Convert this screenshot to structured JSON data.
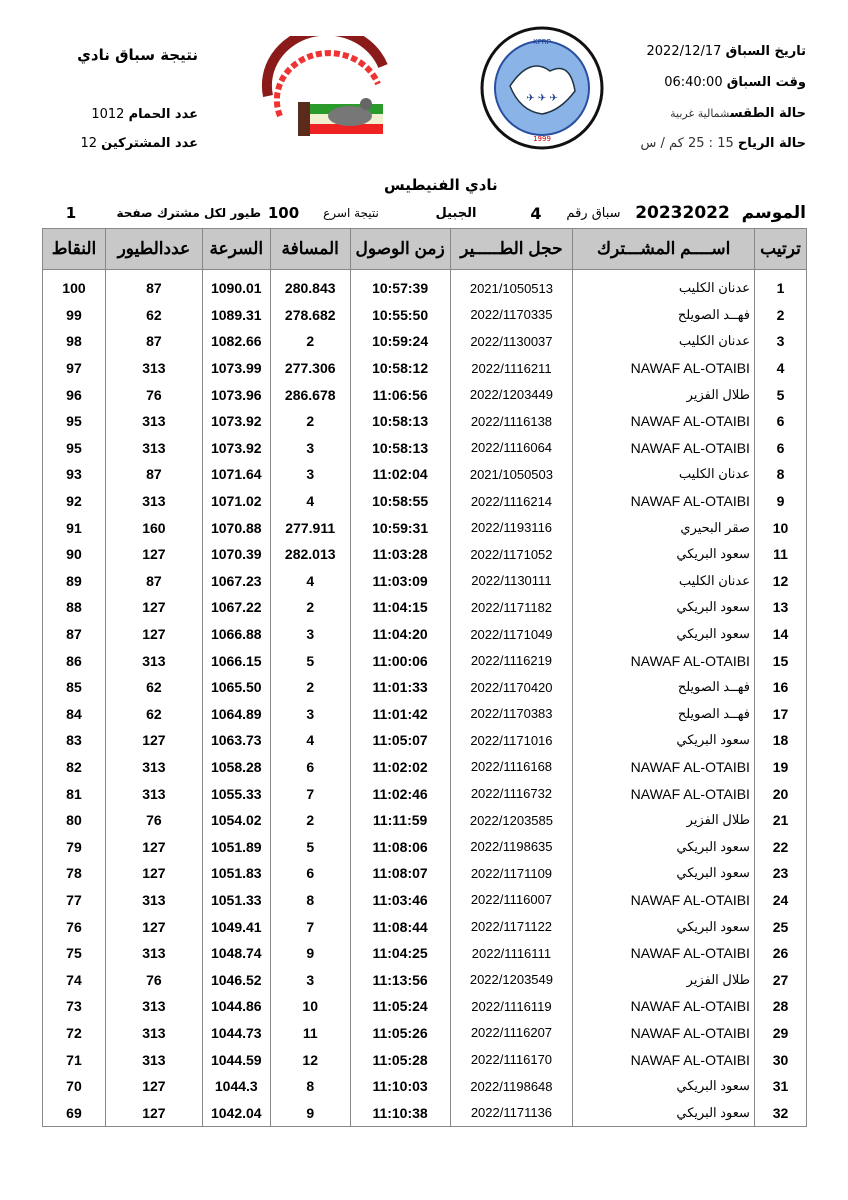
{
  "header": {
    "race_date_label": "تاريخ السباق",
    "race_date": "2022/12/17",
    "race_time_label": "وقت السباق",
    "race_time": "06:40:00",
    "weather_label": "حالة الطقس",
    "weather": "شمالية غربية",
    "wind_label": "حالة الرياح",
    "wind": "15 : 25 كم / س",
    "title": "نتيجة سباق نادي",
    "pigeons_label": "عدد الحمام",
    "pigeons": "1012",
    "participants_label": "عدد المشتركين",
    "participants": "12",
    "logo_left_text": "النادي الكويتي لسباق الحمام الزاجل - Kuwait Racing Pigeon Club",
    "logo_right_text": "الاتحاد الكويتي لسباق الحمام الزاجل - Kuwait Federation For Racing Pigeons"
  },
  "club": "نادي الفنيطيس",
  "info": {
    "season_label": "الموسم",
    "season": "20232022",
    "race_no_label": "سباق رقم",
    "race_no": "4",
    "location": "الجبيل",
    "result_label": "نتيجة اسرع",
    "result_count": "100",
    "per_member_label": "طيور لكل مشترك",
    "page_label": "صفحة",
    "page": "1"
  },
  "columns": {
    "rank": "ترتيب",
    "name": "اســــم المشـــترك",
    "ring": "حجل الطـــــير",
    "time": "زمن الوصول",
    "distance": "المسافة",
    "speed": "السرعة",
    "birds": "عددالطيور",
    "points": "النقاط"
  },
  "rows": [
    [
      "1",
      "عدنان الكليب",
      "2021/1050513",
      "10:57:39",
      "280.843",
      "1090.01",
      "87",
      "100"
    ],
    [
      "2",
      "فهــد الصويلح",
      "2022/1170335",
      "10:55:50",
      "278.682",
      "1089.31",
      "62",
      "99"
    ],
    [
      "3",
      "عدنان الكليب",
      "2022/1130037",
      "10:59:24",
      "2",
      "1082.66",
      "87",
      "98"
    ],
    [
      "4",
      "NAWAF AL-OTAIBI",
      "2022/1116211",
      "10:58:12",
      "277.306",
      "1073.99",
      "313",
      "97"
    ],
    [
      "5",
      "طلال الفزير",
      "2022/1203449",
      "11:06:56",
      "286.678",
      "1073.96",
      "76",
      "96"
    ],
    [
      "6",
      "NAWAF AL-OTAIBI",
      "2022/1116138",
      "10:58:13",
      "2",
      "1073.92",
      "313",
      "95"
    ],
    [
      "6",
      "NAWAF AL-OTAIBI",
      "2022/1116064",
      "10:58:13",
      "3",
      "1073.92",
      "313",
      "95"
    ],
    [
      "8",
      "عدنان الكليب",
      "2021/1050503",
      "11:02:04",
      "3",
      "1071.64",
      "87",
      "93"
    ],
    [
      "9",
      "NAWAF AL-OTAIBI",
      "2022/1116214",
      "10:58:55",
      "4",
      "1071.02",
      "313",
      "92"
    ],
    [
      "10",
      "صقر البحيري",
      "2022/1193116",
      "10:59:31",
      "277.911",
      "1070.88",
      "160",
      "91"
    ],
    [
      "11",
      "سعود البريكي",
      "2022/1171052",
      "11:03:28",
      "282.013",
      "1070.39",
      "127",
      "90"
    ],
    [
      "12",
      "عدنان الكليب",
      "2022/1130111",
      "11:03:09",
      "4",
      "1067.23",
      "87",
      "89"
    ],
    [
      "13",
      "سعود البريكي",
      "2022/1171182",
      "11:04:15",
      "2",
      "1067.22",
      "127",
      "88"
    ],
    [
      "14",
      "سعود البريكي",
      "2022/1171049",
      "11:04:20",
      "3",
      "1066.88",
      "127",
      "87"
    ],
    [
      "15",
      "NAWAF AL-OTAIBI",
      "2022/1116219",
      "11:00:06",
      "5",
      "1066.15",
      "313",
      "86"
    ],
    [
      "16",
      "فهــد الصويلح",
      "2022/1170420",
      "11:01:33",
      "2",
      "1065.50",
      "62",
      "85"
    ],
    [
      "17",
      "فهــد الصويلح",
      "2022/1170383",
      "11:01:42",
      "3",
      "1064.89",
      "62",
      "84"
    ],
    [
      "18",
      "سعود البريكي",
      "2022/1171016",
      "11:05:07",
      "4",
      "1063.73",
      "127",
      "83"
    ],
    [
      "19",
      "NAWAF AL-OTAIBI",
      "2022/1116168",
      "11:02:02",
      "6",
      "1058.28",
      "313",
      "82"
    ],
    [
      "20",
      "NAWAF AL-OTAIBI",
      "2022/1116732",
      "11:02:46",
      "7",
      "1055.33",
      "313",
      "81"
    ],
    [
      "21",
      "طلال الفزير",
      "2022/1203585",
      "11:11:59",
      "2",
      "1054.02",
      "76",
      "80"
    ],
    [
      "22",
      "سعود البريكي",
      "2022/1198635",
      "11:08:06",
      "5",
      "1051.89",
      "127",
      "79"
    ],
    [
      "23",
      "سعود البريكي",
      "2022/1171109",
      "11:08:07",
      "6",
      "1051.83",
      "127",
      "78"
    ],
    [
      "24",
      "NAWAF AL-OTAIBI",
      "2022/1116007",
      "11:03:46",
      "8",
      "1051.33",
      "313",
      "77"
    ],
    [
      "25",
      "سعود البريكي",
      "2022/1171122",
      "11:08:44",
      "7",
      "1049.41",
      "127",
      "76"
    ],
    [
      "26",
      "NAWAF AL-OTAIBI",
      "2022/1116111",
      "11:04:25",
      "9",
      "1048.74",
      "313",
      "75"
    ],
    [
      "27",
      "طلال الفزير",
      "2022/1203549",
      "11:13:56",
      "3",
      "1046.52",
      "76",
      "74"
    ],
    [
      "28",
      "NAWAF AL-OTAIBI",
      "2022/1116119",
      "11:05:24",
      "10",
      "1044.86",
      "313",
      "73"
    ],
    [
      "29",
      "NAWAF AL-OTAIBI",
      "2022/1116207",
      "11:05:26",
      "11",
      "1044.73",
      "313",
      "72"
    ],
    [
      "30",
      "NAWAF AL-OTAIBI",
      "2022/1116170",
      "11:05:28",
      "12",
      "1044.59",
      "313",
      "71"
    ],
    [
      "31",
      "سعود البريكي",
      "2022/1198648",
      "11:10:03",
      "8",
      "1044.3",
      "127",
      "70"
    ],
    [
      "32",
      "سعود البريكي",
      "2022/1171136",
      "11:10:38",
      "9",
      "1042.04",
      "127",
      "69"
    ]
  ]
}
